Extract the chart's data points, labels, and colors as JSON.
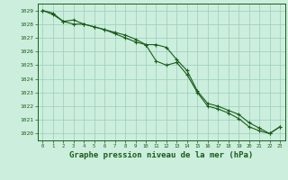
{
  "background_color": "#cceedd",
  "grid_color": "#99ccbb",
  "line_color": "#1a5c1a",
  "xlabel": "Graphe pression niveau de la mer (hPa)",
  "xlabel_fontsize": 6.5,
  "ylim": [
    1019.5,
    1029.5
  ],
  "xlim": [
    -0.5,
    23.5
  ],
  "yticks": [
    1020,
    1021,
    1022,
    1023,
    1024,
    1025,
    1026,
    1027,
    1028,
    1029
  ],
  "xticks": [
    0,
    1,
    2,
    3,
    4,
    5,
    6,
    7,
    8,
    9,
    10,
    11,
    12,
    13,
    14,
    15,
    16,
    17,
    18,
    19,
    20,
    21,
    22,
    23
  ],
  "line1_x": [
    0,
    1,
    2,
    3,
    4,
    5,
    6,
    7,
    8,
    9,
    10,
    11,
    12,
    13,
    14,
    15,
    16,
    17,
    18,
    19,
    20,
    21,
    22,
    23
  ],
  "line1_y": [
    1029.0,
    1028.7,
    1028.2,
    1028.3,
    1028.0,
    1027.8,
    1027.6,
    1027.4,
    1027.2,
    1026.9,
    1026.5,
    1026.5,
    1026.3,
    1025.4,
    1024.6,
    1023.1,
    1022.2,
    1022.0,
    1021.7,
    1021.4,
    1020.8,
    1020.4,
    1020.0,
    1020.5
  ],
  "line2_x": [
    0,
    1,
    2,
    3,
    4,
    5,
    6,
    7,
    8,
    9,
    10,
    11,
    12,
    13,
    14,
    15,
    16,
    17,
    18,
    19,
    20,
    21,
    22,
    23
  ],
  "line2_y": [
    1029.0,
    1028.8,
    1028.2,
    1028.0,
    1028.0,
    1027.8,
    1027.6,
    1027.3,
    1027.0,
    1026.7,
    1026.5,
    1025.3,
    1025.0,
    1025.2,
    1024.3,
    1023.0,
    1022.0,
    1021.8,
    1021.5,
    1021.1,
    1020.5,
    1020.2,
    1020.0,
    1020.5
  ]
}
